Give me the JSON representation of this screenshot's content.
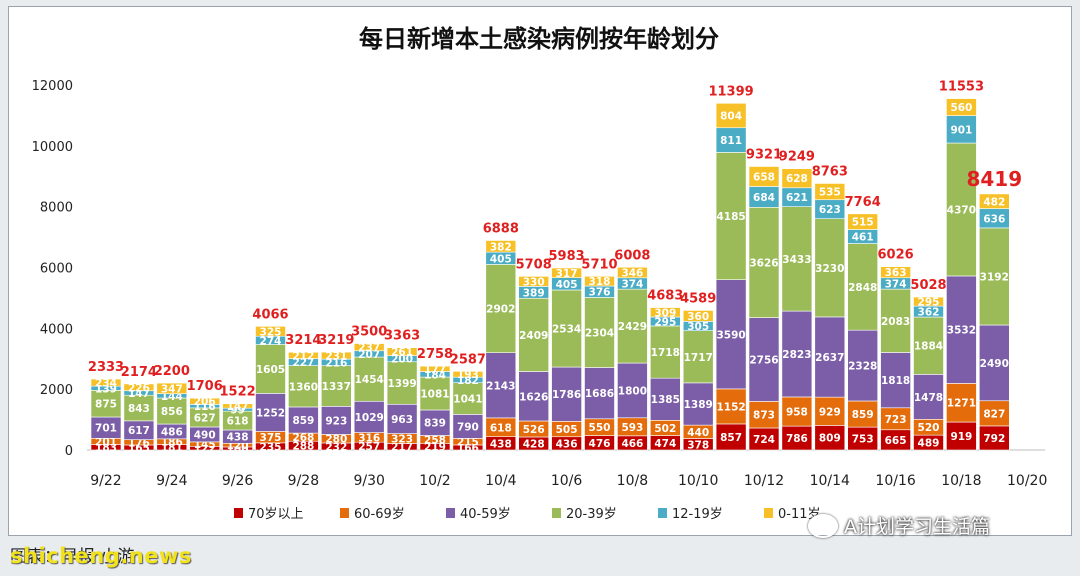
{
  "chart_data": {
    "type": "bar",
    "stacked": true,
    "title": "每日新增本土感染病例按年龄划分",
    "xlabel": "",
    "ylabel": "",
    "ylim": [
      0,
      12000
    ],
    "yticks": [
      0,
      2000,
      4000,
      6000,
      8000,
      10000,
      12000
    ],
    "xticks": [
      "9/22",
      "9/24",
      "9/26",
      "9/28",
      "9/30",
      "10/2",
      "10/4",
      "10/6",
      "10/8",
      "10/10",
      "10/12",
      "10/14",
      "10/16",
      "10/18",
      "10/20"
    ],
    "grid": false,
    "legend_position": "bottom",
    "categories": [
      "9/22",
      "9/23",
      "9/24",
      "9/25",
      "9/26",
      "9/27",
      "9/28",
      "9/29",
      "9/30",
      "10/1",
      "10/2",
      "10/3",
      "10/4",
      "10/5",
      "10/6",
      "10/7",
      "10/8",
      "10/9",
      "10/10",
      "10/11",
      "10/12",
      "10/13",
      "10/14",
      "10/15",
      "10/16",
      "10/17",
      "10/18",
      "10/19",
      "10/20"
    ],
    "totals": [
      2333,
      2174,
      2200,
      1706,
      1522,
      4066,
      3214,
      3219,
      3500,
      3363,
      2758,
      2587,
      6888,
      5708,
      5983,
      5710,
      6008,
      4683,
      4589,
      11399,
      9321,
      9249,
      8763,
      7764,
      6026,
      5028,
      11553,
      8419,
      null
    ],
    "highlight_total_index": 27,
    "series": [
      {
        "name": "70岁以上",
        "color": "#c00000",
        "values": [
          183,
          165,
          181,
          122,
          100,
          235,
          288,
          232,
          257,
          217,
          219,
          166,
          438,
          428,
          436,
          476,
          466,
          474,
          378,
          857,
          724,
          786,
          809,
          753,
          665,
          489,
          919,
          792,
          null
        ]
      },
      {
        "name": "60-69岁",
        "color": "#e46c0a",
        "values": [
          201,
          176,
          186,
          145,
          120,
          375,
          268,
          280,
          316,
          323,
          258,
          215,
          618,
          526,
          505,
          550,
          593,
          502,
          440,
          1152,
          873,
          958,
          929,
          859,
          723,
          520,
          1271,
          827,
          null
        ]
      },
      {
        "name": "40-59岁",
        "color": "#7b5ea7",
        "values": [
          701,
          617,
          486,
          490,
          438,
          1252,
          859,
          923,
          1029,
          963,
          839,
          790,
          2143,
          1626,
          1786,
          1686,
          1800,
          1385,
          1389,
          3590,
          2756,
          2823,
          2637,
          2328,
          1818,
          1478,
          3532,
          2490,
          null
        ]
      },
      {
        "name": "20-39岁",
        "color": "#9bbb59",
        "values": [
          875,
          843,
          856,
          627,
          618,
          1605,
          1360,
          1337,
          1454,
          1399,
          1081,
          1041,
          2902,
          2409,
          2534,
          2304,
          2429,
          1718,
          1717,
          4185,
          3626,
          3433,
          3230,
          2848,
          2083,
          1884,
          4370,
          3192,
          null
        ]
      },
      {
        "name": "12-19岁",
        "color": "#4bacc6",
        "values": [
          139,
          147,
          144,
          116,
          99,
          274,
          227,
          216,
          207,
          200,
          184,
          182,
          405,
          389,
          405,
          376,
          374,
          295,
          305,
          811,
          684,
          621,
          623,
          461,
          374,
          362,
          901,
          636,
          null
        ]
      },
      {
        "name": "0-11岁",
        "color": "#f6c026",
        "values": [
          234,
          226,
          347,
          206,
          147,
          325,
          212,
          231,
          237,
          261,
          177,
          193,
          382,
          330,
          317,
          318,
          346,
          309,
          360,
          804,
          658,
          628,
          535,
          515,
          363,
          295,
          560,
          482,
          null
        ]
      }
    ]
  },
  "footer": {
    "source_text": "图表：早报 小游",
    "watermark_text": "shicheng.news",
    "wechat_text": "A计划学习生活篇"
  },
  "colors": {
    "title": "#111111",
    "total_label": "#e02020",
    "segment_label": "#ffffff"
  }
}
